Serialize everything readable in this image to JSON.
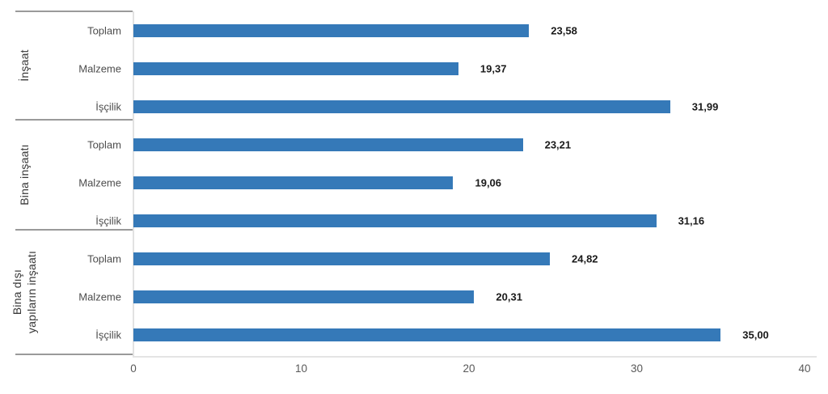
{
  "chart_data": {
    "type": "bar",
    "orientation": "horizontal",
    "title": "",
    "xlabel": "",
    "ylabel": "",
    "xlim": [
      0,
      40
    ],
    "xticks": [
      0,
      10,
      20,
      30,
      40
    ],
    "xtick_labels": [
      "0",
      "10",
      "20",
      "30",
      "40"
    ],
    "grid": false,
    "legend": null,
    "bar_color": "#3579B8",
    "value_label_style": "bold-black-decimal-comma",
    "groups": [
      {
        "label": "İnşaat",
        "label_lines": [
          "İnşaat"
        ],
        "rows": [
          {
            "category": "Toplam",
            "value": 23.58,
            "value_label": "23,58"
          },
          {
            "category": "Malzeme",
            "value": 19.37,
            "value_label": "19,37"
          },
          {
            "category": "İşçilik",
            "value": 31.99,
            "value_label": "31,99"
          }
        ]
      },
      {
        "label": "Bina inşaatı",
        "label_lines": [
          "Bina inşaatı"
        ],
        "rows": [
          {
            "category": "Toplam",
            "value": 23.21,
            "value_label": "23,21"
          },
          {
            "category": "Malzeme",
            "value": 19.06,
            "value_label": "19,06"
          },
          {
            "category": "İşçilik",
            "value": 31.16,
            "value_label": "31,16"
          }
        ]
      },
      {
        "label": "Bina dışı yapıların inşaatı",
        "label_lines": [
          "Bina dışı",
          "yapıların inşaatı"
        ],
        "rows": [
          {
            "category": "Toplam",
            "value": 24.82,
            "value_label": "24,82"
          },
          {
            "category": "Malzeme",
            "value": 20.31,
            "value_label": "20,31"
          },
          {
            "category": "İşçilik",
            "value": 35.0,
            "value_label": "35,00"
          }
        ]
      }
    ]
  },
  "colors": {
    "bar": "#3579B8",
    "separator_line": "#9a9a9a",
    "axis_line": "#e4e4e4",
    "category_text": "#4d4d4d",
    "group_text": "#383838",
    "tick_text": "#595959",
    "value_text": "#1a1a1a",
    "background": "#ffffff"
  }
}
